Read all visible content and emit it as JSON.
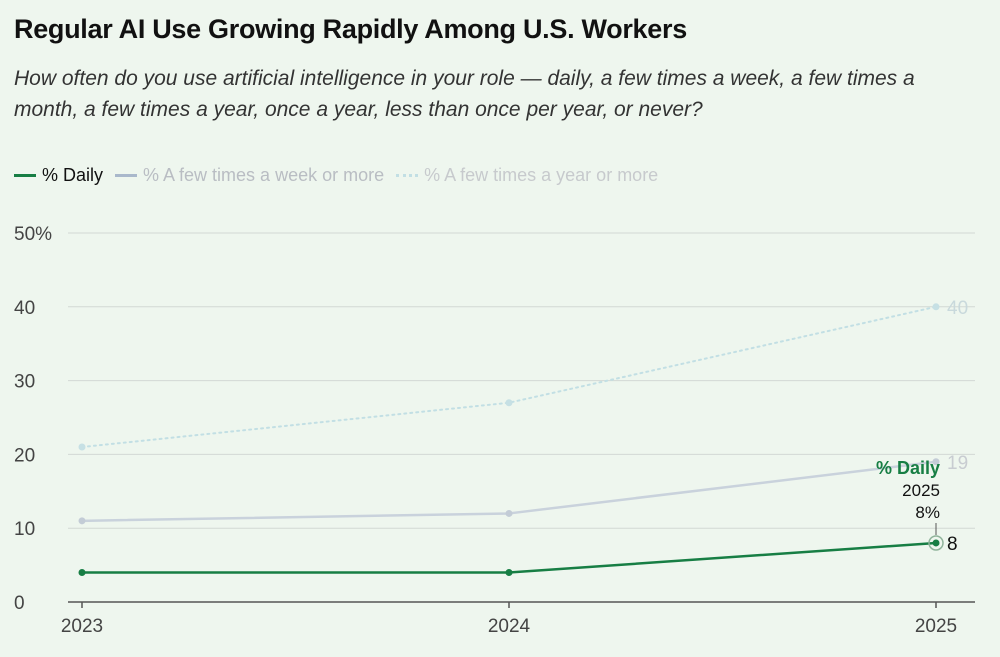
{
  "title": "Regular AI Use Growing Rapidly Among U.S. Workers",
  "subtitle": "How often do you use artificial intelligence in your role — daily, a few times a week, a few times a month, a few times a year, once a year, less than once per year, or never?",
  "colors": {
    "daily": "#177e44",
    "week": "#c9d2dc",
    "year": "#c2dfe4",
    "grid": "#d2d8d4",
    "axis": "#555555"
  },
  "chart_data": {
    "type": "line",
    "x": [
      "2023",
      "2024",
      "2025"
    ],
    "ylim": [
      0,
      50
    ],
    "y_ticks": [
      "0",
      "10",
      "20",
      "30",
      "40",
      "50%"
    ],
    "grid": true,
    "legend_position": "top-left",
    "series": [
      {
        "key": "daily",
        "name": "% Daily",
        "values": [
          4,
          4,
          8
        ],
        "style": "solid",
        "end_label": "8"
      },
      {
        "key": "week",
        "name": "% A few times a week or more",
        "values": [
          11,
          12,
          19
        ],
        "style": "solid",
        "end_label": "19"
      },
      {
        "key": "year",
        "name": "% A few times a year or more",
        "values": [
          21,
          27,
          40
        ],
        "style": "dotted",
        "end_label": "40"
      }
    ],
    "annotation": {
      "series_name": "% Daily",
      "year": "2025",
      "value": "8%"
    }
  }
}
